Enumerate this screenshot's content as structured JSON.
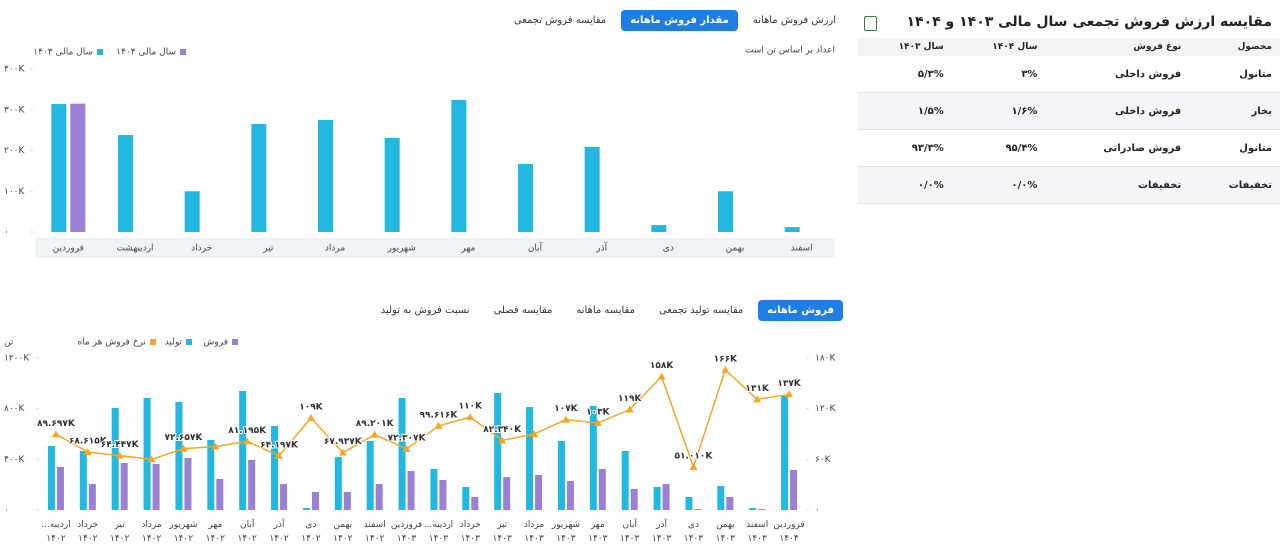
{
  "chart_data": [
    {
      "type": "bar",
      "tabs": [
        {
          "label": "ارزش فروش ماهانه",
          "active": false
        },
        {
          "label": "مقدار فروش ماهانه",
          "active": true
        },
        {
          "label": "مقایسه فروش تجمعی",
          "active": false
        }
      ],
      "note": "اعداد بر اساس تن است",
      "categories": [
        "فروردین",
        "اردیبهشت",
        "خرداد",
        "تیر",
        "مرداد",
        "شهریور",
        "مهر",
        "آبان",
        "آذر",
        "دی",
        "بهمن",
        "اسفند"
      ],
      "series": [
        {
          "name": "سال مالی ۱۴۰۳",
          "color": "#22b8e0",
          "values": [
            314000,
            238000,
            100000,
            265000,
            275000,
            231000,
            324000,
            167000,
            209000,
            17000,
            100000,
            12000
          ]
        },
        {
          "name": "سال مالی ۱۴۰۴",
          "color": "#9b7fd4",
          "values": [
            315000,
            null,
            null,
            null,
            null,
            null,
            null,
            null,
            null,
            null,
            null,
            null
          ]
        }
      ],
      "ylim": [
        0,
        400000
      ],
      "yticks": [
        {
          "value": 0,
          "label": "۰"
        },
        {
          "value": 100000,
          "label": "۱۰۰K"
        },
        {
          "value": 200000,
          "label": "۲۰۰K"
        },
        {
          "value": 300000,
          "label": "۳۰۰K"
        },
        {
          "value": 400000,
          "label": "۴۰۰K"
        }
      ]
    },
    {
      "type": "bar-line",
      "tabs": [
        {
          "label": "فروش ماهانه",
          "active": true
        },
        {
          "label": "مقایسه تولید تجمعی",
          "active": false
        },
        {
          "label": "مقایسه ماهانه",
          "active": false
        },
        {
          "label": "مقایسه فصلی",
          "active": false
        },
        {
          "label": "نسبت فروش به تولید",
          "active": false
        }
      ],
      "y_label": "تن",
      "categories": [
        "اردیبه... ۱۴۰۲",
        "خرداد ۱۴۰۲",
        "تیر ۱۴۰۲",
        "مرداد ۱۴۰۲",
        "شهریور ۱۴۰۲",
        "مهر ۱۴۰۲",
        "آبان ۱۴۰۲",
        "آذر ۱۴۰۲",
        "دی ۱۴۰۲",
        "بهمن ۱۴۰۲",
        "اسفند ۱۴۰۲",
        "فروردین ۱۴۰۳",
        "اردیبه... ۱۴۰۳",
        "خرداد ۱۴۰۳",
        "تیر ۱۴۰۳",
        "مرداد ۱۴۰۳",
        "شهریور ۱۴۰۳",
        "مهر ۱۴۰۳",
        "آبان ۱۴۰۳",
        "آذر ۱۴۰۳",
        "دی ۱۴۰۳",
        "بهمن ۱۴۰۳",
        "اسفند ۱۴۰۳",
        "فروردین ۱۴۰۴"
      ],
      "series": [
        {
          "name": "فروش",
          "color": "#9b7fd4",
          "kind": "bar",
          "values": [
            340000,
            205000,
            371000,
            363000,
            410000,
            245000,
            395000,
            205000,
            142000,
            142000,
            205000,
            308000,
            237000,
            103000,
            260000,
            276000,
            229000,
            324000,
            166000,
            205000,
            8000,
            103000,
            8000,
            316000
          ]
        },
        {
          "name": "تولید",
          "color": "#22b8e0",
          "kind": "bar",
          "values": [
            505000,
            466000,
            805000,
            884000,
            853000,
            553000,
            940000,
            663000,
            16000,
            418000,
            545000,
            884000,
            324000,
            182000,
            924000,
            813000,
            545000,
            821000,
            466000,
            182000,
            103000,
            190000,
            16000,
            900000
          ]
        },
        {
          "name": "نرخ فروش هر ماه",
          "color": "#f5a623",
          "kind": "line",
          "axis": "y2",
          "values": [
            89697,
            68615,
            64447,
            60000,
            72657,
            75000,
            81195,
            64197,
            109000,
            67937,
            89201,
            72307,
            99616,
            110000,
            82340,
            90000,
            107000,
            103000,
            119000,
            158000,
            51010,
            166000,
            131000,
            137000
          ],
          "value_labels": [
            "۸۹.۶۹۷K",
            "۶۸.۶۱۵K",
            "۶۴.۴۴۷K",
            null,
            "۷۲.۶۵۷K",
            null,
            "۸۱.۱۹۵K",
            "۶۴.۱۹۷K",
            "۱۰۹K",
            "۶۷.۹۳۷K",
            "۸۹.۲۰۱K",
            "۷۲.۳۰۷K",
            "۹۹.۶۱۶K",
            "۱۱۰K",
            "۸۲.۳۴۰K",
            null,
            "۱۰۷K",
            "۱۰۳K",
            "۱۱۹K",
            "۱۵۸K",
            "۵۱.۰۱۰K",
            "۱۶۶K",
            "۱۳۱K",
            "۱۳۷K"
          ]
        }
      ],
      "ylim": [
        0,
        1200000
      ],
      "yticks": [
        {
          "value": 0,
          "label": "۰"
        },
        {
          "value": 400000,
          "label": "۴۰۰K"
        },
        {
          "value": 800000,
          "label": "۸۰۰K"
        },
        {
          "value": 1200000,
          "label": "۱۲۰۰K"
        }
      ],
      "y2lim": [
        0,
        180000
      ],
      "y2ticks": [
        {
          "value": 0,
          "label": "۰"
        },
        {
          "value": 60000,
          "label": "۶۰K"
        },
        {
          "value": 120000,
          "label": "۱۲۰K"
        },
        {
          "value": 180000,
          "label": "۱۸۰K"
        }
      ]
    }
  ],
  "table_panel": {
    "title": "مقایسه ارزش فروش تجمعی سال مالی ۱۴۰۳ و ۱۴۰۴",
    "columns": [
      "محصول",
      "نوع فروش",
      "سال ۱۴۰۴",
      "سال ۱۴۰۳"
    ],
    "rows": [
      [
        "متانول",
        "فروش داخلی",
        "۳%",
        "۵/۳%"
      ],
      [
        "بخار",
        "فروش داخلی",
        "۱/۶%",
        "۱/۵%"
      ],
      [
        "متانول",
        "فروش صادراتی",
        "۹۵/۴%",
        "۹۳/۳%"
      ],
      [
        "تخفیفات",
        "تخفیفات",
        "۰/۰%",
        "۰/۰%"
      ]
    ]
  }
}
